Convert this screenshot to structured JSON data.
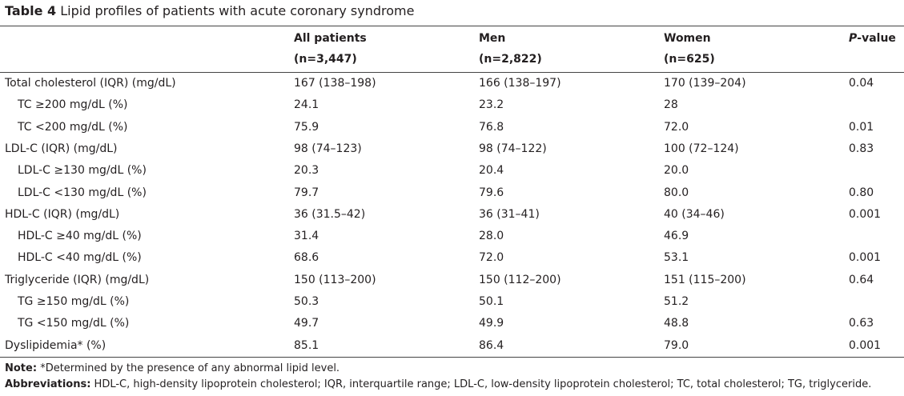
{
  "title": {
    "label": "Table 4",
    "text": "Lipid profiles of patients with acute coronary syndrome"
  },
  "header": {
    "columns": [
      {
        "name": "All patients",
        "n": "(n=3,447)"
      },
      {
        "name": "Men",
        "n": "(n=2,822)"
      },
      {
        "name": "Women",
        "n": "(n=625)"
      }
    ],
    "p": {
      "italic": "P",
      "rest": "-value"
    }
  },
  "groups": [
    {
      "row": {
        "label": "Total cholesterol (IQR) (mg/dL)",
        "cells": [
          "167 (138–198)",
          "166 (138–197)",
          "170 (139–204)"
        ],
        "p": "0.04"
      },
      "subrows": [
        {
          "label": "TC ≥200 mg/dL (%)",
          "cells": [
            "24.1",
            "23.2",
            "28"
          ]
        },
        {
          "label": "TC <200 mg/dL (%)",
          "cells": [
            "75.9",
            "76.8",
            "72.0"
          ],
          "p": "0.01"
        }
      ]
    },
    {
      "row": {
        "label": "LDL-C (IQR) (mg/dL)",
        "cells": [
          "98 (74–123)",
          "98 (74–122)",
          "100 (72–124)"
        ],
        "p": "0.83"
      },
      "subrows": [
        {
          "label": "LDL-C ≥130 mg/dL (%)",
          "cells": [
            "20.3",
            "20.4",
            "20.0"
          ]
        },
        {
          "label": "LDL-C <130 mg/dL (%)",
          "cells": [
            "79.7",
            "79.6",
            "80.0"
          ],
          "p": "0.80"
        }
      ]
    },
    {
      "row": {
        "label": "HDL-C (IQR) (mg/dL)",
        "cells": [
          "36 (31.5–42)",
          "36 (31–41)",
          "40 (34–46)"
        ],
        "p": "0.001"
      },
      "subrows": [
        {
          "label": "HDL-C ≥40 mg/dL (%)",
          "cells": [
            "31.4",
            "28.0",
            "46.9"
          ]
        },
        {
          "label": "HDL-C <40 mg/dL (%)",
          "cells": [
            "68.6",
            "72.0",
            "53.1"
          ],
          "p": "0.001"
        }
      ]
    },
    {
      "row": {
        "label": "Triglyceride (IQR) (mg/dL)",
        "cells": [
          "150 (113–200)",
          "150 (112–200)",
          "151 (115–200)"
        ],
        "p": "0.64"
      },
      "subrows": [
        {
          "label": "TG ≥150 mg/dL (%)",
          "cells": [
            "50.3",
            "50.1",
            "51.2"
          ]
        },
        {
          "label": "TG <150 mg/dL (%)",
          "cells": [
            "49.7",
            "49.9",
            "48.8"
          ],
          "p": "0.63"
        }
      ]
    },
    {
      "row": {
        "label": "Dyslipidemia* (%)",
        "cells": [
          "85.1",
          "86.4",
          "79.0"
        ],
        "p": "0.001"
      },
      "subrows": []
    }
  ],
  "notes": {
    "note_label": "Note:",
    "note": "*Determined by the presence of any abnormal lipid level.",
    "abbr_label": "Abbreviations:",
    "abbr": "HDL-C, high-density lipoprotein cholesterol; IQR, interquartile range; LDL-C, low-density lipoprotein cholesterol; TC, total cholesterol; TG, triglyceride."
  }
}
